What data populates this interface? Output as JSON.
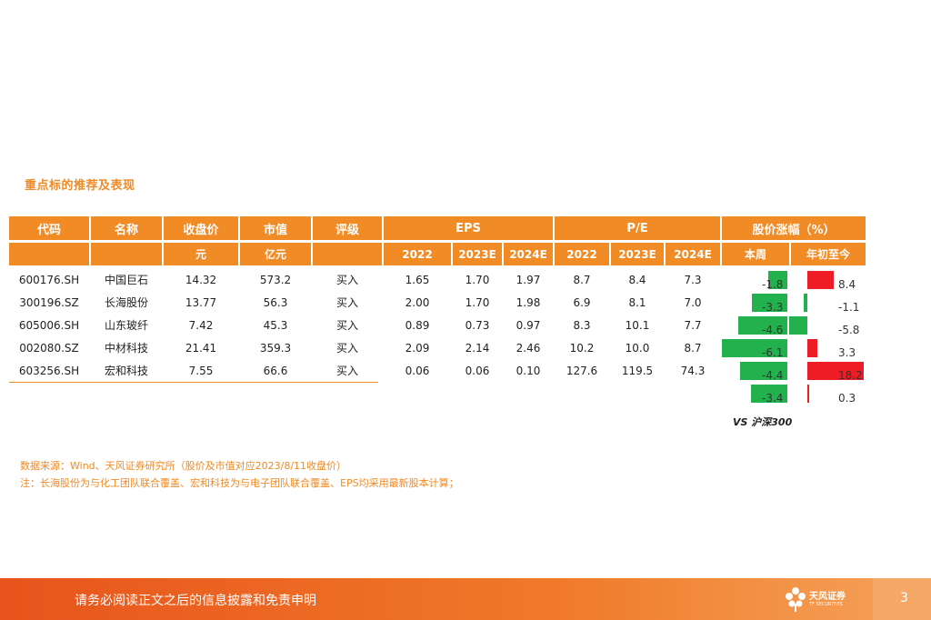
{
  "section_title": "重点标的推荐及表现",
  "header": {
    "row1": [
      "代码",
      "名称",
      "收盘价",
      "市值",
      "评级",
      "EPS",
      "P/E",
      "股价涨幅（%）"
    ],
    "row2": [
      "",
      "",
      "元",
      "亿元",
      "",
      "2022",
      "2023E",
      "2024E",
      "2022",
      "2023E",
      "2024E",
      "本周",
      "年初至今"
    ]
  },
  "rows": [
    {
      "code": "600176.SH",
      "name": "中国巨石",
      "close": "14.32",
      "mcap": "573.2",
      "rating": "买入",
      "eps": [
        "1.65",
        "1.70",
        "1.97"
      ],
      "pe": [
        "8.7",
        "8.4",
        "7.3"
      ],
      "week": -1.8,
      "ytd": 8.4,
      "week_label": "-1.8",
      "ytd_label": "8.4"
    },
    {
      "code": "300196.SZ",
      "name": "长海股份",
      "close": "13.77",
      "mcap": "56.3",
      "rating": "买入",
      "eps": [
        "2.00",
        "1.70",
        "1.98"
      ],
      "pe": [
        "6.9",
        "8.1",
        "7.0"
      ],
      "week": -3.3,
      "ytd": -1.1,
      "week_label": "-3.3",
      "ytd_label": "-1.1"
    },
    {
      "code": "605006.SH",
      "name": "山东玻纤",
      "close": "7.42",
      "mcap": "45.3",
      "rating": "买入",
      "eps": [
        "0.89",
        "0.73",
        "0.97"
      ],
      "pe": [
        "8.3",
        "10.1",
        "7.7"
      ],
      "week": -4.6,
      "ytd": -5.8,
      "week_label": "-4.6",
      "ytd_label": "-5.8"
    },
    {
      "code": "002080.SZ",
      "name": "中材科技",
      "close": "21.41",
      "mcap": "359.3",
      "rating": "买入",
      "eps": [
        "2.09",
        "2.14",
        "2.46"
      ],
      "pe": [
        "10.2",
        "10.0",
        "8.7"
      ],
      "week": -6.1,
      "ytd": 3.3,
      "week_label": "-6.1",
      "ytd_label": "3.3"
    },
    {
      "code": "603256.SH",
      "name": "宏和科技",
      "close": "7.55",
      "mcap": "66.6",
      "rating": "买入",
      "eps": [
        "0.06",
        "0.06",
        "0.10"
      ],
      "pe": [
        "127.6",
        "119.5",
        "74.3"
      ],
      "week": -4.4,
      "ytd": 18.2,
      "week_label": "-4.4",
      "ytd_label": "18.2"
    }
  ],
  "benchmark": {
    "week": -3.4,
    "ytd": 0.3,
    "week_label": "-3.4",
    "ytd_label": "0.3",
    "label": "VS 沪深300"
  },
  "notes": [
    "数据来源：Wind、天风证券研究所（股价及市值对应2023/8/11收盘价）",
    "注：长海股份为与化工团队联合覆盖、宏和科技为与电子团队联合覆盖、EPS均采用最新股本计算；"
  ],
  "footer": {
    "disclaimer": "请务必阅读正文之后的信息披露和免责申明",
    "logo_text": "天风证券",
    "logo_sub": "TF SECURITIES",
    "page": "3"
  },
  "colors": {
    "accent": "#f18b25",
    "up": "#ee1c25",
    "down": "#22b14c"
  }
}
